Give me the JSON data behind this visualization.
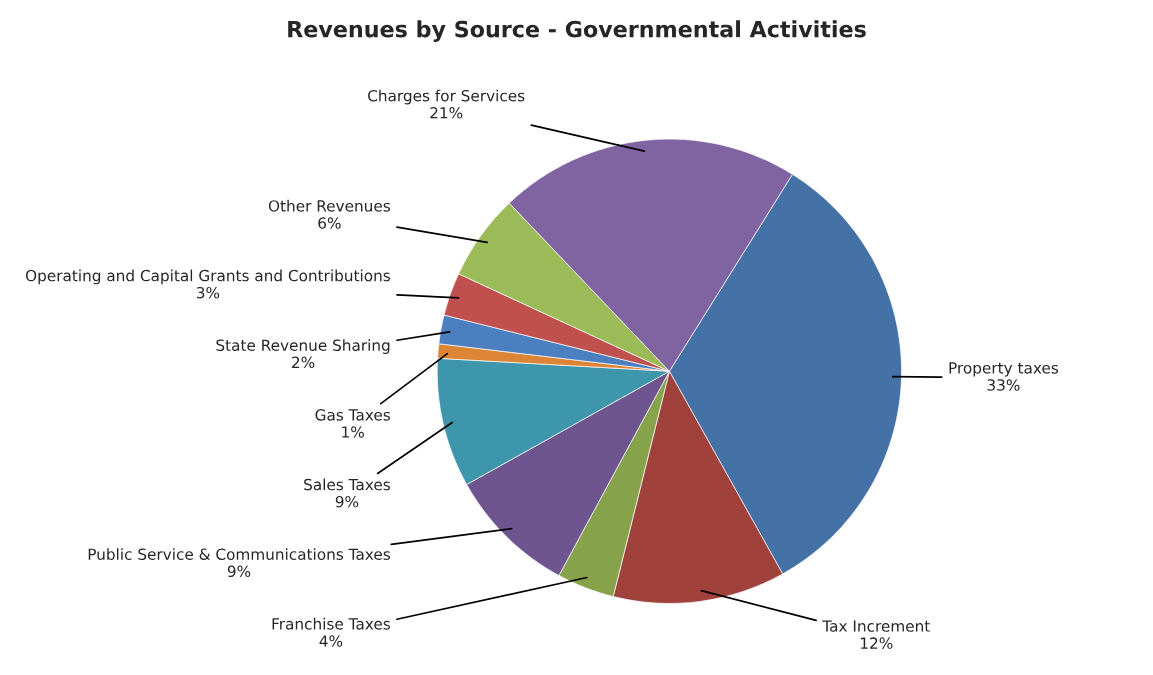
{
  "chart_data": {
    "type": "pie",
    "title": "Revenues by Source - Governmental Activities",
    "categories": [
      "Property taxes",
      "Tax Increment",
      "Franchise Taxes",
      "Public Service & Communications Taxes",
      "Sales Taxes",
      "Gas Taxes",
      "State Revenue Sharing",
      "Operating and Capital Grants and Contributions",
      "Other Revenues",
      "Charges for Services"
    ],
    "values": [
      33,
      12,
      4,
      9,
      9,
      1,
      2,
      3,
      6,
      21
    ],
    "value_labels": [
      "33%",
      "12%",
      "4%",
      "9%",
      "9%",
      "1%",
      "2%",
      "3%",
      "6%",
      "21%"
    ],
    "colors": [
      "#4472a6",
      "#a0413c",
      "#86a34c",
      "#6f5590",
      "#3d96ab",
      "#dd8535",
      "#4c7fc0",
      "#c0504d",
      "#9bbb59",
      "#8064a2"
    ],
    "legend": false
  }
}
